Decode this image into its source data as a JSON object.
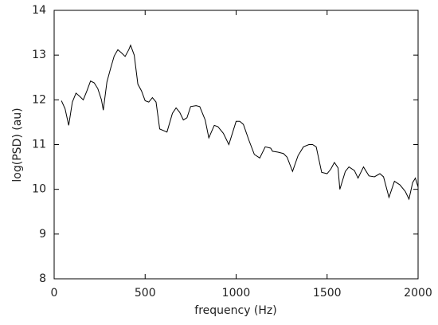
{
  "chart_data": {
    "type": "line",
    "x_label": "frequency (Hz)",
    "y_label": "log(PSD) (au)",
    "x": [
      40,
      60,
      80,
      100,
      120,
      140,
      160,
      180,
      200,
      220,
      240,
      260,
      270,
      290,
      310,
      330,
      350,
      370,
      390,
      410,
      420,
      440,
      460,
      480,
      500,
      520,
      540,
      560,
      580,
      620,
      650,
      670,
      690,
      710,
      730,
      750,
      780,
      800,
      830,
      850,
      880,
      900,
      930,
      960,
      1000,
      1020,
      1040,
      1070,
      1100,
      1130,
      1160,
      1190,
      1200,
      1230,
      1260,
      1280,
      1310,
      1340,
      1370,
      1400,
      1420,
      1440,
      1470,
      1500,
      1520,
      1540,
      1560,
      1570,
      1600,
      1620,
      1650,
      1670,
      1700,
      1730,
      1760,
      1790,
      1810,
      1840,
      1870,
      1900,
      1930,
      1950,
      1970,
      1985,
      2000
    ],
    "series": [
      {
        "name": "PSD",
        "color": "#000000",
        "values": [
          11.98,
          11.8,
          11.43,
          11.95,
          12.15,
          12.08,
          12.0,
          12.2,
          12.42,
          12.38,
          12.25,
          12.0,
          11.77,
          12.4,
          12.7,
          12.98,
          13.12,
          13.05,
          12.97,
          13.12,
          13.22,
          13.0,
          12.35,
          12.2,
          11.98,
          11.95,
          12.05,
          11.95,
          11.35,
          11.28,
          11.7,
          11.82,
          11.72,
          11.55,
          11.6,
          11.85,
          11.87,
          11.85,
          11.55,
          11.15,
          11.43,
          11.4,
          11.25,
          11.0,
          11.52,
          11.52,
          11.45,
          11.1,
          10.78,
          10.7,
          10.95,
          10.92,
          10.85,
          10.83,
          10.8,
          10.72,
          10.4,
          10.75,
          10.95,
          11.0,
          11.0,
          10.95,
          10.38,
          10.35,
          10.45,
          10.6,
          10.48,
          10.0,
          10.4,
          10.5,
          10.42,
          10.25,
          10.5,
          10.3,
          10.28,
          10.35,
          10.28,
          9.82,
          10.18,
          10.1,
          9.95,
          9.78,
          10.15,
          10.25,
          10.05
        ]
      }
    ],
    "xlim": [
      0,
      2000
    ],
    "xticks": [
      0,
      500,
      1000,
      1500,
      2000
    ],
    "ylim": [
      8,
      14
    ],
    "yticks": [
      8,
      9,
      10,
      11,
      12,
      13,
      14
    ],
    "grid": false
  }
}
